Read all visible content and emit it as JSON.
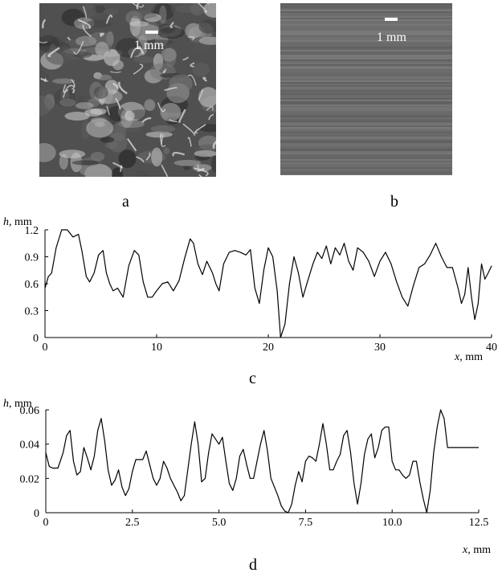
{
  "panels": {
    "a": {
      "label": "a",
      "scale_label": "1 mm"
    },
    "b": {
      "label": "b",
      "scale_label": "1 mm"
    },
    "c": {
      "label": "c"
    },
    "d": {
      "label": "d"
    }
  },
  "colors": {
    "line": "#000000",
    "axis": "#000000",
    "photo_a_base": "#505050",
    "photo_b_base": "#6e6e6e"
  },
  "chart_data": [
    {
      "type": "line",
      "panel": "c",
      "ylabel": "h, mm",
      "xlabel": "x, mm",
      "xlim": [
        0,
        40
      ],
      "ylim": [
        0,
        1.2
      ],
      "xticks": [
        "0",
        "10",
        "20",
        "30",
        "40"
      ],
      "xtick_values": [
        0,
        10,
        20,
        30,
        40
      ],
      "yticks": [
        "1.2",
        "0.9",
        "0.6",
        "0.3",
        "0"
      ],
      "ytick_values": [
        1.2,
        0.9,
        0.6,
        0.3,
        0
      ],
      "grid": false,
      "series": [
        {
          "x": [
            0,
            0.3,
            0.6,
            1.0,
            1.5,
            2.0,
            2.5,
            3.0,
            3.3,
            3.7,
            4.0,
            4.4,
            4.8,
            5.2,
            5.5,
            5.8,
            6.1,
            6.5,
            7.0,
            7.5,
            8.0,
            8.4,
            8.8,
            9.2,
            9.6,
            10.0,
            10.5,
            11.0,
            11.5,
            12.0,
            12.5,
            13.0,
            13.3,
            13.7,
            14.1,
            14.5,
            15.0,
            15.3,
            15.6,
            16.0,
            16.5,
            17.0,
            17.5,
            18.0,
            18.4,
            18.8,
            19.2,
            19.6,
            20.0,
            20.4,
            20.8,
            21.1,
            21.5,
            21.9,
            22.3,
            22.7,
            23.1,
            23.5,
            24.0,
            24.4,
            24.8,
            25.2,
            25.6,
            26.0,
            26.4,
            26.8,
            27.2,
            27.6,
            28.0,
            28.5,
            29.0,
            29.5,
            30.0,
            30.5,
            31.0,
            31.5,
            32.0,
            32.5,
            33.0,
            33.5,
            34.0,
            34.5,
            35.0,
            35.5,
            36.0,
            36.5,
            37.0,
            37.3,
            37.6,
            37.9,
            38.2,
            38.5,
            38.8,
            39.1,
            39.4,
            39.7,
            40.0
          ],
          "y": [
            0.55,
            0.68,
            0.72,
            1.0,
            1.2,
            1.2,
            1.12,
            1.15,
            0.97,
            0.68,
            0.62,
            0.72,
            0.92,
            0.97,
            0.72,
            0.6,
            0.52,
            0.55,
            0.45,
            0.8,
            0.97,
            0.92,
            0.62,
            0.45,
            0.45,
            0.52,
            0.6,
            0.62,
            0.52,
            0.63,
            0.88,
            1.1,
            1.05,
            0.82,
            0.7,
            0.85,
            0.72,
            0.6,
            0.52,
            0.82,
            0.95,
            0.97,
            0.95,
            0.92,
            0.98,
            0.55,
            0.38,
            0.75,
            1.0,
            0.9,
            0.52,
            0.0,
            0.15,
            0.6,
            0.9,
            0.72,
            0.45,
            0.62,
            0.82,
            0.95,
            0.88,
            1.02,
            0.82,
            1.0,
            0.92,
            1.05,
            0.85,
            0.75,
            1.0,
            0.95,
            0.85,
            0.68,
            0.85,
            0.95,
            0.82,
            0.62,
            0.45,
            0.35,
            0.58,
            0.78,
            0.82,
            0.92,
            1.05,
            0.9,
            0.78,
            0.78,
            0.55,
            0.38,
            0.48,
            0.78,
            0.45,
            0.2,
            0.38,
            0.82,
            0.65,
            0.72,
            0.8
          ]
        }
      ]
    },
    {
      "type": "line",
      "panel": "d",
      "ylabel": "h, mm",
      "xlabel": "x, mm",
      "xlim": [
        0,
        12.5
      ],
      "ylim": [
        0,
        0.06
      ],
      "xticks": [
        "0",
        "2.5",
        "5.0",
        "7.5",
        "10.0",
        "12.5"
      ],
      "xtick_values": [
        0,
        2.5,
        5.0,
        7.5,
        10.0,
        12.5
      ],
      "yticks": [
        "0.06",
        "0.04",
        "0.02",
        "0"
      ],
      "ytick_values": [
        0.06,
        0.04,
        0.02,
        0
      ],
      "grid": false,
      "series": [
        {
          "x": [
            0,
            0.1,
            0.2,
            0.35,
            0.5,
            0.6,
            0.7,
            0.8,
            0.9,
            1.0,
            1.1,
            1.2,
            1.3,
            1.4,
            1.5,
            1.6,
            1.7,
            1.8,
            1.9,
            2.0,
            2.1,
            2.2,
            2.3,
            2.4,
            2.5,
            2.6,
            2.7,
            2.8,
            2.9,
            3.0,
            3.1,
            3.2,
            3.3,
            3.4,
            3.5,
            3.6,
            3.7,
            3.8,
            3.9,
            4.0,
            4.1,
            4.2,
            4.3,
            4.4,
            4.5,
            4.6,
            4.7,
            4.8,
            4.9,
            5.0,
            5.1,
            5.2,
            5.3,
            5.4,
            5.5,
            5.6,
            5.7,
            5.8,
            5.9,
            6.0,
            6.1,
            6.2,
            6.3,
            6.4,
            6.5,
            6.6,
            6.7,
            6.8,
            6.9,
            7.0,
            7.1,
            7.2,
            7.3,
            7.4,
            7.5,
            7.6,
            7.7,
            7.8,
            7.9,
            8.0,
            8.1,
            8.2,
            8.3,
            8.4,
            8.5,
            8.6,
            8.7,
            8.8,
            8.9,
            9.0,
            9.1,
            9.2,
            9.3,
            9.4,
            9.5,
            9.6,
            9.7,
            9.8,
            9.9,
            10.0,
            10.1,
            10.2,
            10.3,
            10.4,
            10.5,
            10.6,
            10.7,
            10.8,
            10.9,
            11.0,
            11.1,
            11.2,
            11.3,
            11.4,
            11.5,
            11.6,
            11.7,
            11.8,
            11.9,
            12.0,
            12.1,
            12.2,
            12.3,
            12.4,
            12.5
          ],
          "y": [
            0.035,
            0.027,
            0.026,
            0.026,
            0.035,
            0.045,
            0.048,
            0.03,
            0.022,
            0.024,
            0.038,
            0.032,
            0.025,
            0.033,
            0.048,
            0.055,
            0.042,
            0.025,
            0.016,
            0.019,
            0.025,
            0.015,
            0.01,
            0.014,
            0.024,
            0.031,
            0.031,
            0.031,
            0.036,
            0.028,
            0.02,
            0.016,
            0.02,
            0.03,
            0.026,
            0.02,
            0.016,
            0.012,
            0.007,
            0.01,
            0.025,
            0.04,
            0.053,
            0.04,
            0.018,
            0.02,
            0.035,
            0.046,
            0.043,
            0.04,
            0.044,
            0.03,
            0.017,
            0.013,
            0.02,
            0.033,
            0.037,
            0.028,
            0.02,
            0.02,
            0.03,
            0.04,
            0.048,
            0.036,
            0.02,
            0.015,
            0.01,
            0.004,
            0.001,
            0.0,
            0.005,
            0.016,
            0.024,
            0.018,
            0.03,
            0.033,
            0.032,
            0.03,
            0.04,
            0.052,
            0.04,
            0.025,
            0.025,
            0.03,
            0.034,
            0.045,
            0.048,
            0.035,
            0.017,
            0.005,
            0.017,
            0.034,
            0.043,
            0.046,
            0.032,
            0.038,
            0.048,
            0.05,
            0.05,
            0.03,
            0.025,
            0.025,
            0.022,
            0.02,
            0.022,
            0.03,
            0.03,
            0.018,
            0.008,
            0.0,
            0.013,
            0.035,
            0.05,
            0.06,
            0.055,
            0.038,
            0.038,
            0.038,
            0.038,
            0.038,
            0.038,
            0.038,
            0.038,
            0.038,
            0.038
          ]
        }
      ]
    }
  ]
}
